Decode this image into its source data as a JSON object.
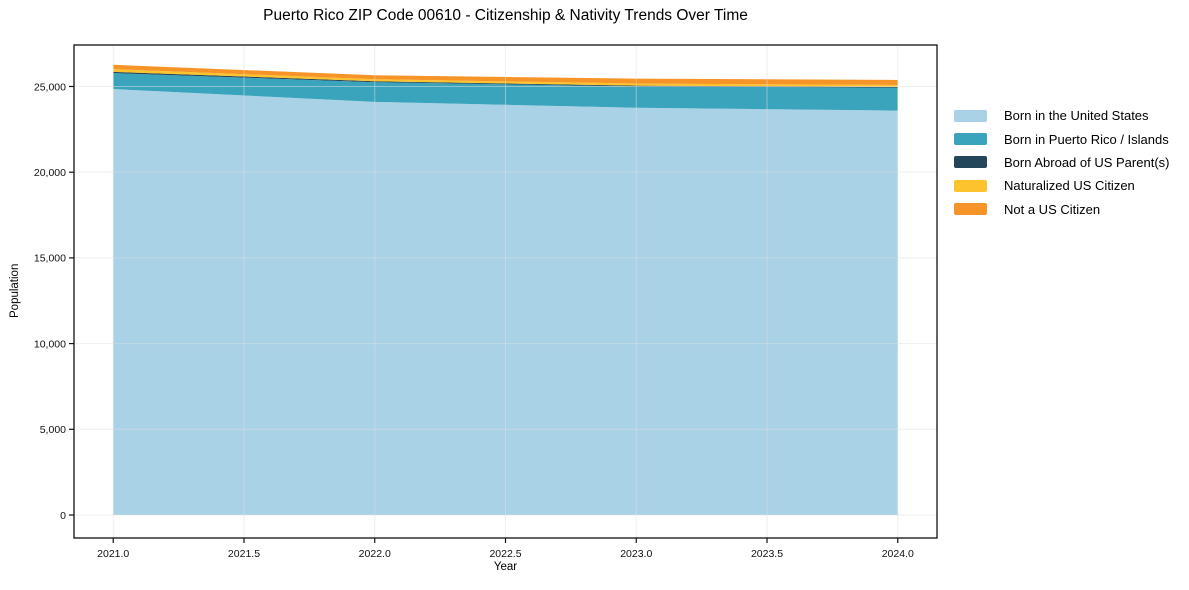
{
  "chart_data": {
    "type": "area",
    "stacked": true,
    "title": "Puerto Rico ZIP Code 00610 - Citizenship & Nativity Trends Over Time",
    "xlabel": "Year",
    "ylabel": "Population",
    "x": [
      2021,
      2022,
      2023,
      2024
    ],
    "series": [
      {
        "name": "Born in the United States",
        "color": "#a9d2e6",
        "values": [
          24850,
          24100,
          23760,
          23590
        ]
      },
      {
        "name": "Born in Puerto Rico / Islands",
        "color": "#3ba4bd",
        "values": [
          930,
          1150,
          1240,
          1340
        ]
      },
      {
        "name": "Born Abroad of US Parent(s)",
        "color": "#24465a",
        "values": [
          75,
          55,
          50,
          45
        ]
      },
      {
        "name": "Naturalized US Citizen",
        "color": "#fcc32d",
        "values": [
          160,
          120,
          120,
          115
        ]
      },
      {
        "name": "Not a US Citizen",
        "color": "#f79428",
        "values": [
          250,
          230,
          290,
          290
        ]
      }
    ],
    "xlim": [
      2020.85,
      2024.15
    ],
    "ylim": [
      -1342,
      27420
    ],
    "xticks": {
      "values": [
        2021.0,
        2021.5,
        2022.0,
        2022.5,
        2023.0,
        2023.5,
        2024.0
      ],
      "labels": [
        "2021.0",
        "2021.5",
        "2022.0",
        "2022.5",
        "2023.0",
        "2023.5",
        "2024.0"
      ]
    },
    "yticks": {
      "values": [
        0,
        5000,
        10000,
        15000,
        20000,
        25000
      ],
      "labels": [
        "0",
        "5,000",
        "10,000",
        "15,000",
        "20,000",
        "25,000"
      ]
    },
    "grid": true,
    "grid_color": "#e0e0e0",
    "spine_color": "#111111",
    "legend_position": "right-outside"
  }
}
